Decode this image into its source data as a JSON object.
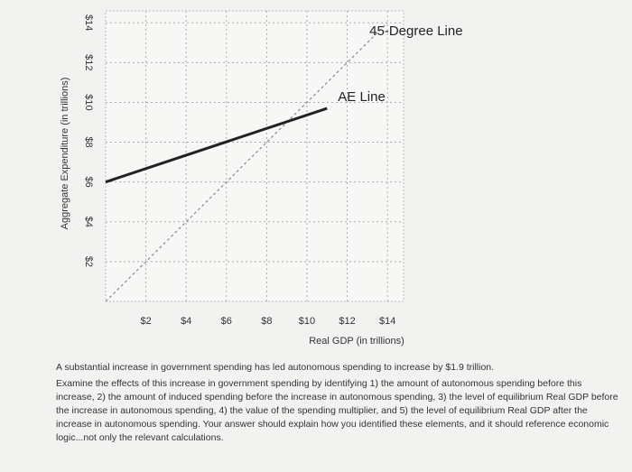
{
  "chart_data": {
    "type": "line",
    "y_label": "Aggregate Expenditure (in trillions)",
    "x_label": "Real GDP (in trillions)",
    "xlim": [
      0,
      14.8
    ],
    "ylim": [
      0,
      14.6
    ],
    "xticks": [
      {
        "value": 2,
        "label": "$2"
      },
      {
        "value": 4,
        "label": "$4"
      },
      {
        "value": 6,
        "label": "$6"
      },
      {
        "value": 8,
        "label": "$8"
      },
      {
        "value": 10,
        "label": "$10"
      },
      {
        "value": 12,
        "label": "$12"
      },
      {
        "value": 14,
        "label": "$14"
      }
    ],
    "yticks": [
      {
        "value": 2,
        "label": "$2"
      },
      {
        "value": 4,
        "label": "$4"
      },
      {
        "value": 6,
        "label": "$6"
      },
      {
        "value": 8,
        "label": "$8"
      },
      {
        "value": 10,
        "label": "$10"
      },
      {
        "value": 12,
        "label": "$12"
      },
      {
        "value": 14,
        "label": "$14"
      }
    ],
    "grid": true,
    "series": [
      {
        "name": "45-Degree Line",
        "color": "#888888",
        "style": "dotted",
        "x": [
          0,
          14
        ],
        "values": [
          0,
          14
        ]
      },
      {
        "name": "AE Line",
        "color": "#222222",
        "style": "solid",
        "x": [
          0,
          11
        ],
        "values": [
          6,
          9.7
        ]
      }
    ]
  },
  "question": {
    "paragraphs": [
      "A substantial increase in government spending has led autonomous spending to increase by $1.9 trillion.",
      "Examine the effects of this increase in government spending by identifying 1) the amount of autonomous spending before this increase, 2) the amount of induced spending before the increase in autonomous spending, 3) the level of equilibrium Real GDP before the increase in autonomous spending, 4) the value of the spending multiplier, and 5) the level of equilibrium Real GDP after the increase in autonomous spending. Your answer should explain how you identified these elements, and it should reference economic logic...not only the relevant calculations."
    ]
  }
}
